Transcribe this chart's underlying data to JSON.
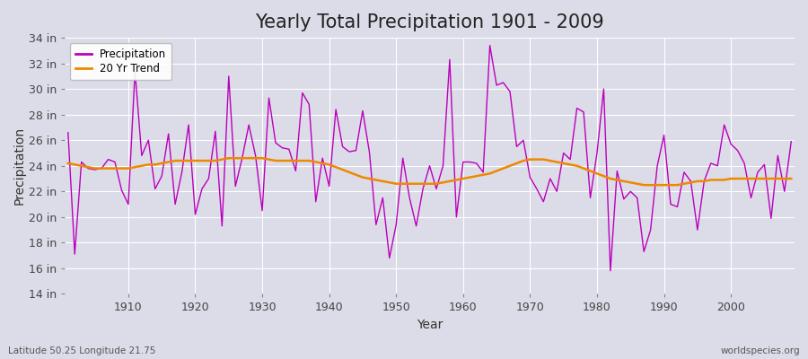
{
  "title": "Yearly Total Precipitation 1901 - 2009",
  "xlabel": "Year",
  "ylabel": "Precipitation",
  "lat_lon_label": "Latitude 50.25 Longitude 21.75",
  "source_label": "worldspecies.org",
  "fig_bg_color": "#dcdce8",
  "plot_bg_color": "#dcdce8",
  "precip_color": "#bb00bb",
  "trend_color": "#ee8800",
  "ylim": [
    14,
    34
  ],
  "ytick_step": 2,
  "years": [
    1901,
    1902,
    1903,
    1904,
    1905,
    1906,
    1907,
    1908,
    1909,
    1910,
    1911,
    1912,
    1913,
    1914,
    1915,
    1916,
    1917,
    1918,
    1919,
    1920,
    1921,
    1922,
    1923,
    1924,
    1925,
    1926,
    1927,
    1928,
    1929,
    1930,
    1931,
    1932,
    1933,
    1934,
    1935,
    1936,
    1937,
    1938,
    1939,
    1940,
    1941,
    1942,
    1943,
    1944,
    1945,
    1946,
    1947,
    1948,
    1949,
    1950,
    1951,
    1952,
    1953,
    1954,
    1955,
    1956,
    1957,
    1958,
    1959,
    1960,
    1961,
    1962,
    1963,
    1964,
    1965,
    1966,
    1967,
    1968,
    1969,
    1970,
    1971,
    1972,
    1973,
    1974,
    1975,
    1976,
    1977,
    1978,
    1979,
    1980,
    1981,
    1982,
    1983,
    1984,
    1985,
    1986,
    1987,
    1988,
    1989,
    1990,
    1991,
    1992,
    1993,
    1994,
    1995,
    1996,
    1997,
    1998,
    1999,
    2000,
    2001,
    2002,
    2003,
    2004,
    2005,
    2006,
    2007,
    2008,
    2009
  ],
  "precip": [
    26.6,
    17.1,
    24.3,
    23.8,
    23.7,
    23.8,
    24.5,
    24.3,
    22.1,
    21.0,
    31.4,
    24.8,
    26.0,
    22.2,
    23.2,
    26.5,
    21.0,
    23.5,
    27.2,
    20.2,
    22.2,
    23.0,
    26.7,
    19.3,
    31.0,
    22.4,
    24.6,
    27.2,
    24.8,
    20.5,
    29.3,
    25.8,
    25.4,
    25.3,
    23.6,
    29.7,
    28.8,
    21.2,
    24.6,
    22.4,
    28.4,
    25.5,
    25.1,
    25.2,
    28.3,
    25.1,
    19.4,
    21.5,
    16.8,
    19.4,
    24.6,
    21.5,
    19.3,
    22.2,
    24.0,
    22.2,
    24.0,
    32.3,
    20.0,
    24.3,
    24.3,
    24.2,
    23.5,
    33.4,
    30.3,
    30.5,
    29.8,
    25.5,
    26.0,
    23.1,
    22.2,
    21.2,
    23.0,
    22.0,
    25.0,
    24.5,
    28.5,
    28.2,
    21.5,
    25.0,
    30.0,
    15.8,
    23.6,
    21.4,
    22.0,
    21.5,
    17.3,
    19.0,
    24.0,
    26.4,
    21.0,
    20.8,
    23.5,
    22.8,
    19.0,
    22.8,
    24.2,
    24.0,
    27.2,
    25.7,
    25.2,
    24.2,
    21.5,
    23.5,
    24.1,
    19.9,
    24.8,
    22.0,
    25.9
  ],
  "trend": [
    24.2,
    24.1,
    24.0,
    23.9,
    23.8,
    23.8,
    23.8,
    23.8,
    23.8,
    23.8,
    23.9,
    24.0,
    24.1,
    24.1,
    24.2,
    24.3,
    24.4,
    24.4,
    24.4,
    24.4,
    24.4,
    24.4,
    24.4,
    24.5,
    24.6,
    24.6,
    24.6,
    24.6,
    24.6,
    24.6,
    24.5,
    24.4,
    24.4,
    24.4,
    24.4,
    24.4,
    24.4,
    24.3,
    24.2,
    24.1,
    23.9,
    23.7,
    23.5,
    23.3,
    23.1,
    23.0,
    22.9,
    22.8,
    22.7,
    22.6,
    22.6,
    22.6,
    22.6,
    22.6,
    22.6,
    22.6,
    22.7,
    22.8,
    22.9,
    23.0,
    23.1,
    23.2,
    23.3,
    23.4,
    23.6,
    23.8,
    24.0,
    24.2,
    24.4,
    24.5,
    24.5,
    24.5,
    24.4,
    24.3,
    24.2,
    24.1,
    24.0,
    23.8,
    23.6,
    23.4,
    23.2,
    23.0,
    22.9,
    22.8,
    22.7,
    22.6,
    22.5,
    22.5,
    22.5,
    22.5,
    22.5,
    22.5,
    22.6,
    22.7,
    22.8,
    22.8,
    22.9,
    22.9,
    22.9,
    23.0,
    23.0,
    23.0,
    23.0,
    23.0,
    23.0,
    23.0,
    23.0,
    23.0,
    23.0
  ],
  "xticks": [
    1910,
    1920,
    1930,
    1940,
    1950,
    1960,
    1970,
    1980,
    1990,
    2000
  ],
  "title_fontsize": 15,
  "axis_label_fontsize": 10,
  "tick_fontsize": 9
}
